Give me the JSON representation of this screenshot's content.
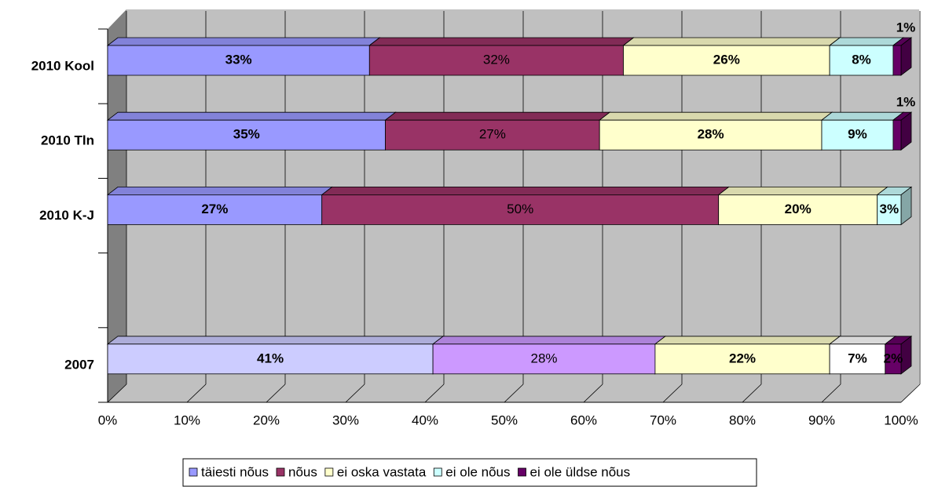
{
  "chart_data": {
    "type": "bar3d_stacked_horizontal",
    "categories": [
      "2010 Kool",
      "2010 Tln",
      "2010 K-J",
      null,
      "2007"
    ],
    "series": [
      {
        "name": "täiesti nõus",
        "color": "#9999ff",
        "colors": [
          "#9999ff",
          "#9999ff",
          "#9999ff",
          null,
          "#ccccff"
        ],
        "values": [
          33,
          35,
          27,
          null,
          41
        ],
        "value_labels": [
          "33%",
          "35%",
          "27%",
          null,
          "41%"
        ]
      },
      {
        "name": "nõus",
        "color": "#993366",
        "colors": [
          "#993366",
          "#993366",
          "#993366",
          null,
          "#cc99ff"
        ],
        "values": [
          32,
          27,
          50,
          null,
          28
        ],
        "value_labels": [
          "32%",
          "27%",
          "50%",
          null,
          "28%"
        ]
      },
      {
        "name": "ei oska vastata",
        "color": "#ffffcc",
        "colors": [
          "#ffffcc",
          "#ffffcc",
          "#ffffcc",
          null,
          "#ffffcc"
        ],
        "values": [
          26,
          28,
          20,
          null,
          22
        ],
        "value_labels": [
          "26%",
          "28%",
          "20%",
          null,
          "22%"
        ]
      },
      {
        "name": "ei ole nõus",
        "color": "#ccffff",
        "colors": [
          "#ccffff",
          "#ccffff",
          "#ccffff",
          null,
          "#ffffff"
        ],
        "values": [
          8,
          9,
          3,
          null,
          7
        ],
        "value_labels": [
          "8%",
          "9%",
          "3%",
          null,
          "7%"
        ]
      },
      {
        "name": "ei ole üldse nõus",
        "color": "#660066",
        "colors": [
          "#660066",
          "#660066",
          "#660066",
          null,
          "#660066"
        ],
        "values": [
          1,
          1,
          null,
          null,
          2
        ],
        "value_labels": [
          "1%",
          "1%",
          null,
          null,
          "2%"
        ]
      }
    ],
    "xlim": [
      0,
      100
    ],
    "xticks": [
      {
        "value": 0,
        "label": "0%"
      },
      {
        "value": 10,
        "label": "10%"
      },
      {
        "value": 20,
        "label": "20%"
      },
      {
        "value": 30,
        "label": "30%"
      },
      {
        "value": 40,
        "label": "40%"
      },
      {
        "value": 50,
        "label": "50%"
      },
      {
        "value": 60,
        "label": "60%"
      },
      {
        "value": 70,
        "label": "70%"
      },
      {
        "value": 80,
        "label": "80%"
      },
      {
        "value": 90,
        "label": "90%"
      },
      {
        "value": 100,
        "label": "100%"
      }
    ],
    "grid": true,
    "legend": "bottom"
  }
}
